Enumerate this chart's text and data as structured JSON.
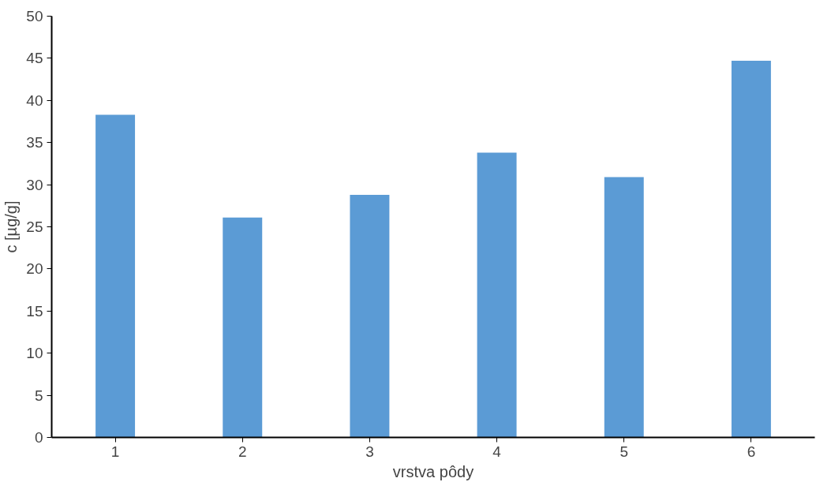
{
  "chart_data": {
    "type": "bar",
    "xlabel": "vrstva pôdy",
    "ylabel": "c [µg/g]",
    "categories": [
      "1",
      "2",
      "3",
      "4",
      "5",
      "6"
    ],
    "values": [
      38.3,
      26.1,
      28.8,
      33.8,
      30.9,
      44.7
    ],
    "color": "#5b9bd5",
    "ylim": [
      0,
      50
    ],
    "yticks": [
      0,
      5,
      10,
      15,
      20,
      25,
      30,
      35,
      40,
      45,
      50
    ],
    "grid": false
  }
}
